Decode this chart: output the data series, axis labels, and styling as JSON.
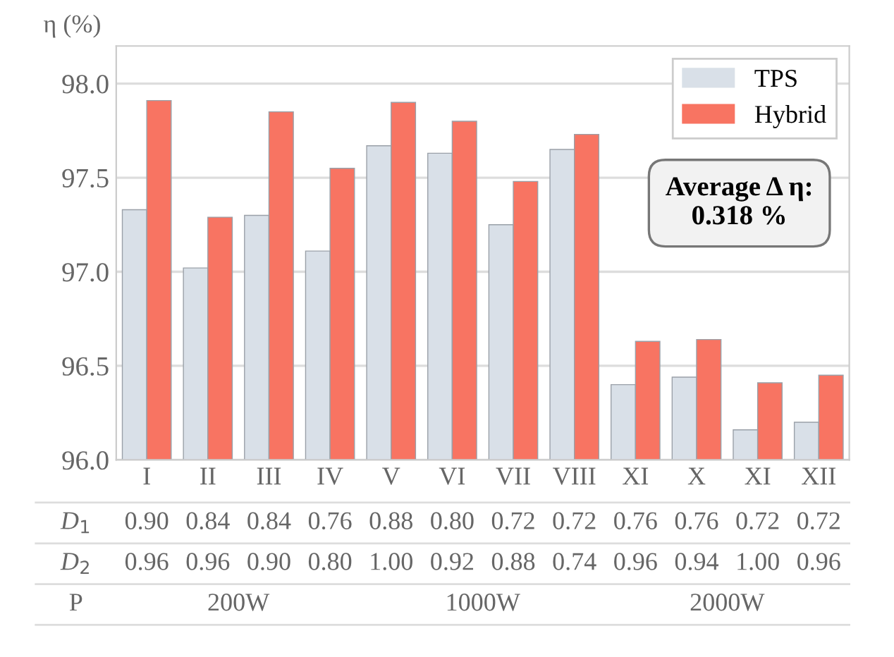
{
  "chart_data": {
    "type": "bar",
    "ylabel": "η (%)",
    "categories": [
      "I",
      "II",
      "III",
      "IV",
      "V",
      "VI",
      "VII",
      "VIII",
      "XI",
      "X",
      "XI",
      "XII"
    ],
    "series": [
      {
        "name": "TPS",
        "color": "#d9e0e8",
        "values": [
          97.33,
          97.02,
          97.3,
          97.11,
          97.67,
          97.63,
          97.25,
          97.65,
          96.4,
          96.44,
          96.16,
          96.2
        ]
      },
      {
        "name": "Hybrid",
        "color": "#f87462",
        "values": [
          97.91,
          97.29,
          97.85,
          97.55,
          97.9,
          97.8,
          97.48,
          97.73,
          96.63,
          96.64,
          96.41,
          96.45
        ]
      }
    ],
    "ylim": [
      96.0,
      98.2
    ],
    "yticks": [
      {
        "value": 96.0,
        "label": "96.0"
      },
      {
        "value": 96.5,
        "label": "96.5"
      },
      {
        "value": 97.0,
        "label": "97.0"
      },
      {
        "value": 97.5,
        "label": "97.5"
      },
      {
        "value": 98.0,
        "label": "98.0"
      }
    ],
    "grid": "y",
    "legend": "top right",
    "annotations": [
      "Average Δ η:\n0.318 %",
      "D$_{1}$",
      "0.90",
      "0.84",
      "0.84",
      "0.76",
      "0.88",
      "0.80",
      "0.72",
      "0.72",
      "0.76",
      "0.76",
      "0.72",
      "0.72",
      "D$_{2}$",
      "0.96",
      "0.96",
      "0.90",
      "0.80",
      "1.00",
      "0.92",
      "0.88",
      "0.74",
      "0.96",
      "0.94",
      "1.00",
      "0.96",
      "P",
      "200W",
      "1000W",
      "2000W"
    ]
  }
}
